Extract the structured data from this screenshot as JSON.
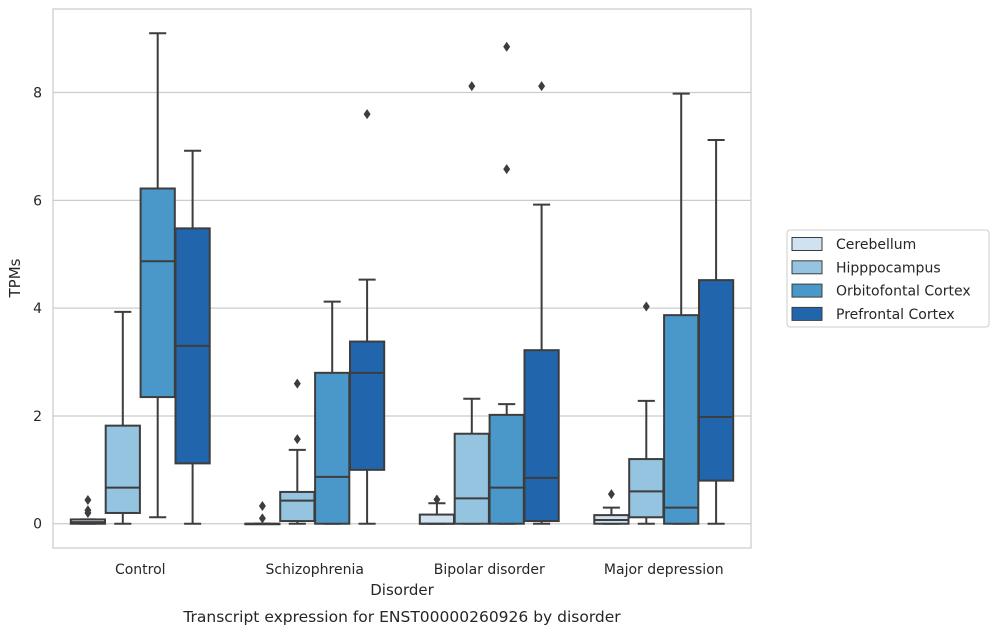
{
  "caption": "Transcript expression for ENST00000260926 by disorder",
  "chart_data": {
    "type": "box",
    "title": "",
    "xlabel": "Disorder",
    "ylabel": "TPMs",
    "ylim": [
      -0.45,
      9.55
    ],
    "yticks": [
      0,
      2,
      4,
      6,
      8
    ],
    "grid": "horizontal",
    "legend_position": "right",
    "categories": [
      "Control",
      "Schizophrenia",
      "Bipolar disorder",
      "Major depression"
    ],
    "series": [
      {
        "name": "Cerebellum",
        "color": "#d0e1f2",
        "boxes": [
          {
            "whisker_low": 0.0,
            "q1": 0.0,
            "median": 0.03,
            "q3": 0.08,
            "whisker_high": 0.08,
            "outliers": [
              0.2,
              0.25,
              0.44
            ]
          },
          {
            "whisker_low": 0.0,
            "q1": 0.0,
            "median": 0.0,
            "q3": 0.0,
            "whisker_high": 0.0,
            "outliers": [
              0.1,
              0.33
            ]
          },
          {
            "whisker_low": 0.0,
            "q1": 0.0,
            "median": 0.0,
            "q3": 0.17,
            "whisker_high": 0.38,
            "outliers": [
              0.45
            ]
          },
          {
            "whisker_low": 0.0,
            "q1": 0.0,
            "median": 0.07,
            "q3": 0.16,
            "whisker_high": 0.3,
            "outliers": [
              0.55
            ]
          }
        ]
      },
      {
        "name": "Hipppocampus",
        "color": "#94c4df",
        "boxes": [
          {
            "whisker_low": 0.0,
            "q1": 0.2,
            "median": 0.67,
            "q3": 1.82,
            "whisker_high": 3.93,
            "outliers": []
          },
          {
            "whisker_low": 0.0,
            "q1": 0.05,
            "median": 0.43,
            "q3": 0.59,
            "whisker_high": 1.37,
            "outliers": [
              1.57,
              2.6
            ]
          },
          {
            "whisker_low": 0.0,
            "q1": 0.0,
            "median": 0.47,
            "q3": 1.67,
            "whisker_high": 2.32,
            "outliers": [
              8.12
            ]
          },
          {
            "whisker_low": 0.0,
            "q1": 0.12,
            "median": 0.6,
            "q3": 1.2,
            "whisker_high": 2.28,
            "outliers": [
              4.03
            ]
          }
        ]
      },
      {
        "name": "Orbitofontal Cortex",
        "color": "#4a98c9",
        "boxes": [
          {
            "whisker_low": 0.12,
            "q1": 2.35,
            "median": 4.87,
            "q3": 6.22,
            "whisker_high": 9.1,
            "outliers": []
          },
          {
            "whisker_low": 0.0,
            "q1": 0.0,
            "median": 0.87,
            "q3": 2.8,
            "whisker_high": 4.12,
            "outliers": []
          },
          {
            "whisker_low": 0.0,
            "q1": 0.0,
            "median": 0.67,
            "q3": 2.02,
            "whisker_high": 2.22,
            "outliers": [
              6.58,
              8.85
            ]
          },
          {
            "whisker_low": 0.0,
            "q1": 0.0,
            "median": 0.3,
            "q3": 3.87,
            "whisker_high": 7.98,
            "outliers": []
          }
        ]
      },
      {
        "name": "Prefrontal Cortex",
        "color": "#2166ac",
        "boxes": [
          {
            "whisker_low": 0.0,
            "q1": 1.12,
            "median": 3.3,
            "q3": 5.48,
            "whisker_high": 6.92,
            "outliers": []
          },
          {
            "whisker_low": 0.0,
            "q1": 1.0,
            "median": 2.8,
            "q3": 3.38,
            "whisker_high": 4.53,
            "outliers": [
              7.6
            ]
          },
          {
            "whisker_low": 0.0,
            "q1": 0.05,
            "median": 0.85,
            "q3": 3.22,
            "whisker_high": 5.92,
            "outliers": [
              8.12
            ]
          },
          {
            "whisker_low": 0.0,
            "q1": 0.8,
            "median": 1.98,
            "q3": 4.52,
            "whisker_high": 7.12,
            "outliers": []
          }
        ]
      }
    ]
  }
}
